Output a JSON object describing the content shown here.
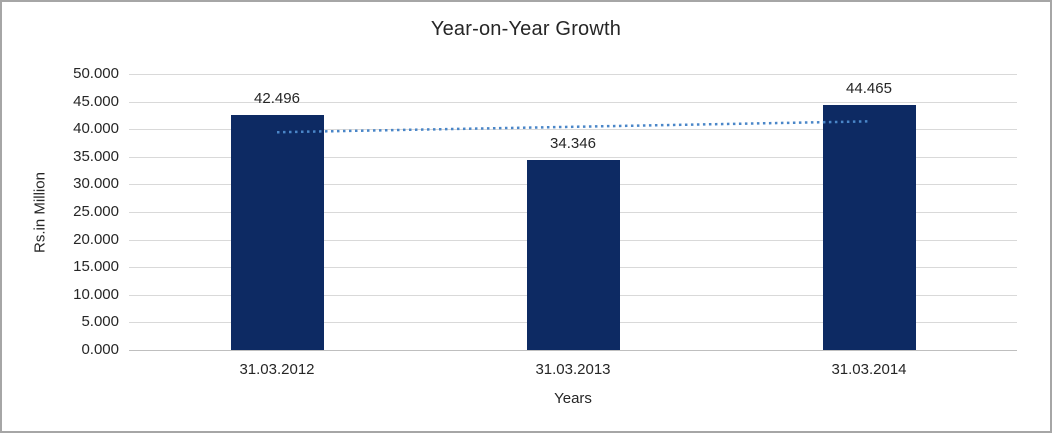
{
  "chart_data": {
    "type": "bar",
    "title": "Year-on-Year Growth",
    "categories": [
      "31.03.2012",
      "31.03.2013",
      "31.03.2014"
    ],
    "values": [
      42.496,
      34.346,
      44.465
    ],
    "data_labels": [
      "42.496",
      "34.346",
      "44.465"
    ],
    "xlabel": "Years",
    "ylabel": "Rs.in Million",
    "ylim": [
      0,
      50
    ],
    "ytick_interval": 5,
    "ytick_labels": [
      "0.000",
      "5.000",
      "10.000",
      "15.000",
      "20.000",
      "25.000",
      "30.000",
      "35.000",
      "40.000",
      "45.000",
      "50.000"
    ],
    "grid": "horizontal",
    "legend": "none",
    "trendline": {
      "type": "linear",
      "line_style": "dotted",
      "start_value": 39.45,
      "end_value": 41.42
    },
    "colors": {
      "bar": "#0d2a63",
      "trendline": "#4a86c8",
      "gridline": "#d9d9d9",
      "axis": "#bfbfbf",
      "text": "#262626",
      "border": "#a6a6a6"
    }
  }
}
